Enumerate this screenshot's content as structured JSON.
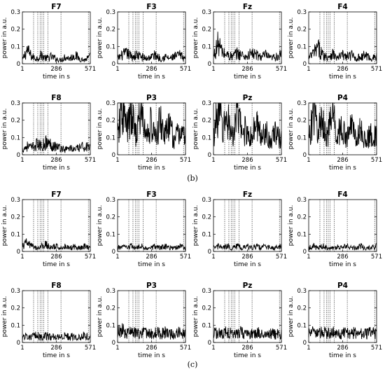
{
  "figure": {
    "captions": [
      "(b)",
      "(c)"
    ]
  },
  "chart_data": [
    {
      "type": "line",
      "panel": "b",
      "title": "F7",
      "xlabel": "time in s",
      "ylabel": "power in a.u.",
      "xlim": [
        1,
        571
      ],
      "ylim": [
        0,
        0.3
      ],
      "xticks": [
        1,
        286,
        571
      ],
      "yticks": [
        0,
        0.1,
        0.2,
        0.3
      ],
      "event_lines": [
        95,
        130,
        150,
        165,
        180,
        215,
        325,
        555
      ],
      "series": [
        {
          "x": [
            1,
            40,
            80,
            120,
            160,
            200,
            240,
            280,
            320,
            360,
            400,
            440,
            480,
            520,
            571
          ],
          "values": [
            0.02,
            0.08,
            0.04,
            0.03,
            0.05,
            0.03,
            0.04,
            0.03,
            0.02,
            0.04,
            0.03,
            0.05,
            0.03,
            0.02,
            0.04
          ]
        }
      ]
    },
    {
      "type": "line",
      "panel": "b",
      "title": "F3",
      "xlabel": "time in s",
      "ylabel": "power in a.u.",
      "xlim": [
        1,
        571
      ],
      "ylim": [
        0,
        0.3
      ],
      "xticks": [
        1,
        286,
        571
      ],
      "yticks": [
        0,
        0.1,
        0.2,
        0.3
      ],
      "event_lines": [
        95,
        130,
        150,
        165,
        180,
        215,
        325,
        555
      ],
      "series": [
        {
          "x": [
            1,
            40,
            80,
            120,
            160,
            200,
            240,
            280,
            320,
            360,
            400,
            440,
            480,
            520,
            571
          ],
          "values": [
            0.03,
            0.05,
            0.06,
            0.04,
            0.05,
            0.04,
            0.03,
            0.04,
            0.05,
            0.03,
            0.04,
            0.03,
            0.04,
            0.05,
            0.03
          ]
        }
      ]
    },
    {
      "type": "line",
      "panel": "b",
      "title": "Fz",
      "xlabel": "time in s",
      "ylabel": "power in a.u.",
      "xlim": [
        1,
        571
      ],
      "ylim": [
        0,
        0.3
      ],
      "xticks": [
        1,
        286,
        571
      ],
      "yticks": [
        0,
        0.1,
        0.2,
        0.3
      ],
      "event_lines": [
        95,
        130,
        150,
        165,
        180,
        215,
        325,
        555
      ],
      "series": [
        {
          "x": [
            1,
            40,
            80,
            120,
            160,
            200,
            240,
            280,
            320,
            360,
            400,
            440,
            480,
            520,
            571
          ],
          "values": [
            0.04,
            0.12,
            0.06,
            0.05,
            0.04,
            0.06,
            0.05,
            0.04,
            0.06,
            0.05,
            0.04,
            0.05,
            0.03,
            0.04,
            0.05
          ]
        }
      ]
    },
    {
      "type": "line",
      "panel": "b",
      "title": "F4",
      "xlabel": "time in s",
      "ylabel": "power in a.u.",
      "xlim": [
        1,
        571
      ],
      "ylim": [
        0,
        0.3
      ],
      "xticks": [
        1,
        286,
        571
      ],
      "yticks": [
        0,
        0.1,
        0.2,
        0.3
      ],
      "event_lines": [
        95,
        130,
        150,
        165,
        180,
        215,
        325,
        555
      ],
      "series": [
        {
          "x": [
            1,
            40,
            80,
            120,
            160,
            200,
            240,
            280,
            320,
            360,
            400,
            440,
            480,
            520,
            571
          ],
          "values": [
            0.03,
            0.06,
            0.09,
            0.05,
            0.04,
            0.06,
            0.03,
            0.05,
            0.04,
            0.05,
            0.03,
            0.04,
            0.05,
            0.03,
            0.04
          ]
        }
      ]
    },
    {
      "type": "line",
      "panel": "b",
      "title": "F8",
      "xlabel": "time in s",
      "ylabel": "power in a.u.",
      "xlim": [
        1,
        571
      ],
      "ylim": [
        0,
        0.3
      ],
      "xticks": [
        1,
        286,
        571
      ],
      "yticks": [
        0,
        0.1,
        0.2,
        0.3
      ],
      "event_lines": [
        95,
        130,
        150,
        165,
        180,
        215,
        325,
        555
      ],
      "series": [
        {
          "x": [
            1,
            40,
            80,
            120,
            160,
            200,
            240,
            280,
            320,
            360,
            400,
            440,
            480,
            520,
            571
          ],
          "values": [
            0.03,
            0.05,
            0.04,
            0.06,
            0.05,
            0.07,
            0.06,
            0.05,
            0.04,
            0.03,
            0.04,
            0.03,
            0.04,
            0.05,
            0.04
          ]
        }
      ]
    },
    {
      "type": "line",
      "panel": "b",
      "title": "P3",
      "xlabel": "time in s",
      "ylabel": "power in a.u.",
      "xlim": [
        1,
        571
      ],
      "ylim": [
        0,
        0.3
      ],
      "xticks": [
        1,
        286,
        571
      ],
      "yticks": [
        0,
        0.1,
        0.2,
        0.3
      ],
      "event_lines": [
        95,
        130,
        150,
        165,
        180,
        215,
        325,
        555
      ],
      "series": [
        {
          "x": [
            1,
            40,
            80,
            120,
            160,
            200,
            240,
            280,
            320,
            360,
            400,
            440,
            480,
            520,
            571
          ],
          "values": [
            0.1,
            0.27,
            0.15,
            0.22,
            0.12,
            0.26,
            0.1,
            0.18,
            0.09,
            0.2,
            0.12,
            0.16,
            0.08,
            0.14,
            0.1
          ]
        }
      ]
    },
    {
      "type": "line",
      "panel": "b",
      "title": "Pz",
      "xlabel": "time in s",
      "ylabel": "power in a.u.",
      "xlim": [
        1,
        571
      ],
      "ylim": [
        0,
        0.3
      ],
      "xticks": [
        1,
        286,
        571
      ],
      "yticks": [
        0,
        0.1,
        0.2,
        0.3
      ],
      "event_lines": [
        95,
        130,
        150,
        165,
        180,
        215,
        325,
        555
      ],
      "series": [
        {
          "x": [
            1,
            40,
            80,
            120,
            160,
            200,
            240,
            280,
            320,
            360,
            400,
            440,
            480,
            520,
            571
          ],
          "values": [
            0.1,
            0.28,
            0.14,
            0.22,
            0.1,
            0.25,
            0.12,
            0.15,
            0.09,
            0.18,
            0.11,
            0.14,
            0.08,
            0.12,
            0.09
          ]
        }
      ]
    },
    {
      "type": "line",
      "panel": "b",
      "title": "P4",
      "xlabel": "time in s",
      "ylabel": "power in a.u.",
      "xlim": [
        1,
        571
      ],
      "ylim": [
        0,
        0.3
      ],
      "xticks": [
        1,
        286,
        571
      ],
      "yticks": [
        0,
        0.1,
        0.2,
        0.3
      ],
      "event_lines": [
        95,
        130,
        150,
        165,
        180,
        215,
        325,
        555
      ],
      "series": [
        {
          "x": [
            1,
            40,
            80,
            120,
            160,
            200,
            240,
            280,
            320,
            360,
            400,
            440,
            480,
            520,
            571
          ],
          "values": [
            0.08,
            0.26,
            0.14,
            0.2,
            0.1,
            0.24,
            0.12,
            0.16,
            0.08,
            0.18,
            0.1,
            0.14,
            0.07,
            0.12,
            0.1
          ]
        }
      ]
    },
    {
      "type": "line",
      "panel": "c",
      "title": "F7",
      "xlabel": "time in s",
      "ylabel": "power in a.u.",
      "xlim": [
        1,
        571
      ],
      "ylim": [
        0,
        0.3
      ],
      "xticks": [
        1,
        286,
        571
      ],
      "yticks": [
        0,
        0.1,
        0.2,
        0.3
      ],
      "event_lines": [
        95,
        130,
        150,
        165,
        180,
        215,
        325,
        555
      ],
      "series": [
        {
          "x": [
            1,
            40,
            80,
            120,
            160,
            200,
            240,
            280,
            320,
            360,
            400,
            440,
            480,
            520,
            571
          ],
          "values": [
            0.03,
            0.05,
            0.03,
            0.02,
            0.03,
            0.04,
            0.02,
            0.03,
            0.02,
            0.03,
            0.02,
            0.03,
            0.02,
            0.03,
            0.02
          ]
        }
      ]
    },
    {
      "type": "line",
      "panel": "c",
      "title": "F3",
      "xlabel": "time in s",
      "ylabel": "power in a.u.",
      "xlim": [
        1,
        571
      ],
      "ylim": [
        0,
        0.3
      ],
      "xticks": [
        1,
        286,
        571
      ],
      "yticks": [
        0,
        0.1,
        0.2,
        0.3
      ],
      "event_lines": [
        95,
        130,
        150,
        165,
        180,
        215,
        325,
        555
      ],
      "series": [
        {
          "x": [
            1,
            40,
            80,
            120,
            160,
            200,
            240,
            280,
            320,
            360,
            400,
            440,
            480,
            520,
            571
          ],
          "values": [
            0.02,
            0.03,
            0.02,
            0.03,
            0.02,
            0.03,
            0.02,
            0.02,
            0.03,
            0.02,
            0.03,
            0.02,
            0.02,
            0.03,
            0.02
          ]
        }
      ]
    },
    {
      "type": "line",
      "panel": "c",
      "title": "Fz",
      "xlabel": "time in s",
      "ylabel": "power in a.u.",
      "xlim": [
        1,
        571
      ],
      "ylim": [
        0,
        0.3
      ],
      "xticks": [
        1,
        286,
        571
      ],
      "yticks": [
        0,
        0.1,
        0.2,
        0.3
      ],
      "event_lines": [
        95,
        130,
        150,
        165,
        180,
        215,
        325,
        555
      ],
      "series": [
        {
          "x": [
            1,
            40,
            80,
            120,
            160,
            200,
            240,
            280,
            320,
            360,
            400,
            440,
            480,
            520,
            571
          ],
          "values": [
            0.02,
            0.03,
            0.02,
            0.03,
            0.02,
            0.03,
            0.02,
            0.03,
            0.02,
            0.03,
            0.02,
            0.03,
            0.02,
            0.02,
            0.03
          ]
        }
      ]
    },
    {
      "type": "line",
      "panel": "c",
      "title": "F4",
      "xlabel": "time in s",
      "ylabel": "power in a.u.",
      "xlim": [
        1,
        571
      ],
      "ylim": [
        0,
        0.3
      ],
      "xticks": [
        1,
        286,
        571
      ],
      "yticks": [
        0,
        0.1,
        0.2,
        0.3
      ],
      "event_lines": [
        95,
        130,
        150,
        165,
        180,
        215,
        325,
        555
      ],
      "series": [
        {
          "x": [
            1,
            40,
            80,
            120,
            160,
            200,
            240,
            280,
            320,
            360,
            400,
            440,
            480,
            520,
            571
          ],
          "values": [
            0.02,
            0.03,
            0.02,
            0.03,
            0.02,
            0.02,
            0.03,
            0.02,
            0.03,
            0.02,
            0.02,
            0.03,
            0.02,
            0.02,
            0.03
          ]
        }
      ]
    },
    {
      "type": "line",
      "panel": "c",
      "title": "F8",
      "xlabel": "time in s",
      "ylabel": "power in a.u.",
      "xlim": [
        1,
        571
      ],
      "ylim": [
        0,
        0.3
      ],
      "xticks": [
        1,
        286,
        571
      ],
      "yticks": [
        0,
        0.1,
        0.2,
        0.3
      ],
      "event_lines": [
        95,
        130,
        150,
        165,
        180,
        215,
        325,
        555
      ],
      "series": [
        {
          "x": [
            1,
            40,
            80,
            120,
            160,
            200,
            240,
            280,
            320,
            360,
            400,
            440,
            480,
            520,
            571
          ],
          "values": [
            0.03,
            0.04,
            0.03,
            0.04,
            0.03,
            0.04,
            0.03,
            0.04,
            0.03,
            0.04,
            0.03,
            0.04,
            0.03,
            0.04,
            0.03
          ]
        }
      ]
    },
    {
      "type": "line",
      "panel": "c",
      "title": "P3",
      "xlabel": "time in s",
      "ylabel": "power in a.u.",
      "xlim": [
        1,
        571
      ],
      "ylim": [
        0,
        0.3
      ],
      "xticks": [
        1,
        286,
        571
      ],
      "yticks": [
        0,
        0.1,
        0.2,
        0.3
      ],
      "event_lines": [
        95,
        130,
        150,
        165,
        180,
        215,
        325,
        555
      ],
      "series": [
        {
          "x": [
            1,
            40,
            80,
            120,
            160,
            200,
            240,
            280,
            320,
            360,
            400,
            440,
            480,
            520,
            571
          ],
          "values": [
            0.06,
            0.07,
            0.05,
            0.06,
            0.05,
            0.06,
            0.05,
            0.05,
            0.06,
            0.05,
            0.06,
            0.05,
            0.05,
            0.06,
            0.05
          ]
        }
      ]
    },
    {
      "type": "line",
      "panel": "c",
      "title": "Pz",
      "xlabel": "time in s",
      "ylabel": "power in a.u.",
      "xlim": [
        1,
        571
      ],
      "ylim": [
        0,
        0.3
      ],
      "xticks": [
        1,
        286,
        571
      ],
      "yticks": [
        0,
        0.1,
        0.2,
        0.3
      ],
      "event_lines": [
        95,
        130,
        150,
        165,
        180,
        215,
        325,
        555
      ],
      "series": [
        {
          "x": [
            1,
            40,
            80,
            120,
            160,
            200,
            240,
            280,
            320,
            360,
            400,
            440,
            480,
            520,
            571
          ],
          "values": [
            0.05,
            0.06,
            0.05,
            0.06,
            0.05,
            0.05,
            0.06,
            0.05,
            0.05,
            0.06,
            0.05,
            0.05,
            0.06,
            0.05,
            0.05
          ]
        }
      ]
    },
    {
      "type": "line",
      "panel": "c",
      "title": "P4",
      "xlabel": "time in s",
      "ylabel": "power in a.u.",
      "xlim": [
        1,
        571
      ],
      "ylim": [
        0,
        0.3
      ],
      "xticks": [
        1,
        286,
        571
      ],
      "yticks": [
        0,
        0.1,
        0.2,
        0.3
      ],
      "event_lines": [
        95,
        130,
        150,
        165,
        180,
        215,
        325,
        555
      ],
      "series": [
        {
          "x": [
            1,
            40,
            80,
            120,
            160,
            200,
            240,
            280,
            320,
            360,
            400,
            440,
            480,
            520,
            571
          ],
          "values": [
            0.05,
            0.06,
            0.05,
            0.06,
            0.05,
            0.06,
            0.05,
            0.05,
            0.06,
            0.05,
            0.06,
            0.05,
            0.05,
            0.06,
            0.05
          ]
        }
      ]
    }
  ]
}
